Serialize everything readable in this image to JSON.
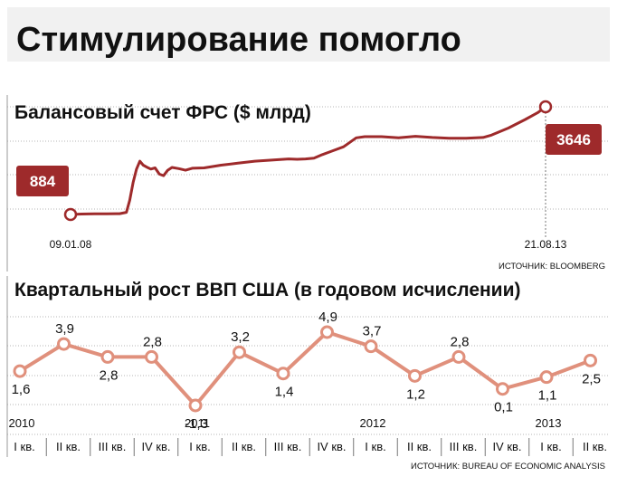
{
  "title": "Стимулирование помогло",
  "colors": {
    "fed_line": "#9e2a2b",
    "gdp_line": "#e0907c",
    "badge": "#9e2a2b",
    "panel_bg": "#f1f1f1",
    "grid": "#aaaaaa"
  },
  "chart_data": [
    {
      "type": "line",
      "title": "Балансовый счет ФРС ($ млрд)",
      "x_start_label": "09.01.08",
      "x_end_label": "21.08.13",
      "start_value": "884",
      "end_value": "3646",
      "source": "ИСТОЧНИК: BLOOMBERG",
      "series": [
        {
          "x": [
            2008.02,
            2008.15,
            2008.3,
            2008.45,
            2008.6,
            2008.68,
            2008.72,
            2008.76,
            2008.8,
            2008.84,
            2008.88,
            2008.92,
            2008.97,
            2009.02,
            2009.07,
            2009.12,
            2009.17,
            2009.22,
            2009.3,
            2009.38,
            2009.46,
            2009.6,
            2009.8,
            2010.0,
            2010.2,
            2010.4,
            2010.6,
            2010.7,
            2010.8,
            2010.9,
            2011.0,
            2011.1,
            2011.25,
            2011.4,
            2011.5,
            2011.7,
            2011.9,
            2012.1,
            2012.3,
            2012.5,
            2012.7,
            2012.9,
            2013.0,
            2013.2,
            2013.4,
            2013.55,
            2013.64
          ],
          "values": [
            884,
            895,
            900,
            900,
            905,
            940,
            1250,
            1700,
            2050,
            2250,
            2150,
            2100,
            2050,
            2080,
            1920,
            1880,
            2020,
            2090,
            2060,
            2020,
            2070,
            2080,
            2150,
            2200,
            2250,
            2280,
            2310,
            2300,
            2310,
            2330,
            2420,
            2500,
            2620,
            2850,
            2880,
            2880,
            2850,
            2890,
            2860,
            2840,
            2840,
            2860,
            2920,
            3100,
            3320,
            3500,
            3646
          ]
        }
      ],
      "xlim": [
        2008.0,
        2013.65
      ],
      "ylim": [
        700,
        3900
      ]
    },
    {
      "type": "line",
      "title": "Квартальный рост ВВП США (в годовом исчислении)",
      "source": "ИСТОЧНИК: BUREAU OF ECONOMIC ANALYSIS",
      "categories": [
        "I кв.",
        "II кв.",
        "III кв.",
        "IV кв.",
        "I кв.",
        "II кв.",
        "III кв.",
        "IV кв.",
        "I кв.",
        "II кв.",
        "III кв.",
        "IV кв.",
        "I кв.",
        "II кв."
      ],
      "years": [
        {
          "label": "2010",
          "index": 0
        },
        {
          "label": "2011",
          "index": 4
        },
        {
          "label": "2012",
          "index": 8
        },
        {
          "label": "2013",
          "index": 12
        }
      ],
      "series": [
        {
          "values": [
            1.6,
            3.9,
            2.8,
            2.8,
            -1.3,
            3.2,
            1.4,
            4.9,
            3.7,
            1.2,
            2.8,
            0.1,
            1.1,
            2.5
          ],
          "labels": [
            "1,6",
            "3,9",
            "2,8",
            "2,8",
            "-1,3",
            "3,2",
            "1,4",
            "4,9",
            "3,7",
            "1,2",
            "2,8",
            "0,1",
            "1,1",
            "2,5"
          ]
        }
      ],
      "ylim": [
        -2.0,
        6.0
      ]
    }
  ]
}
